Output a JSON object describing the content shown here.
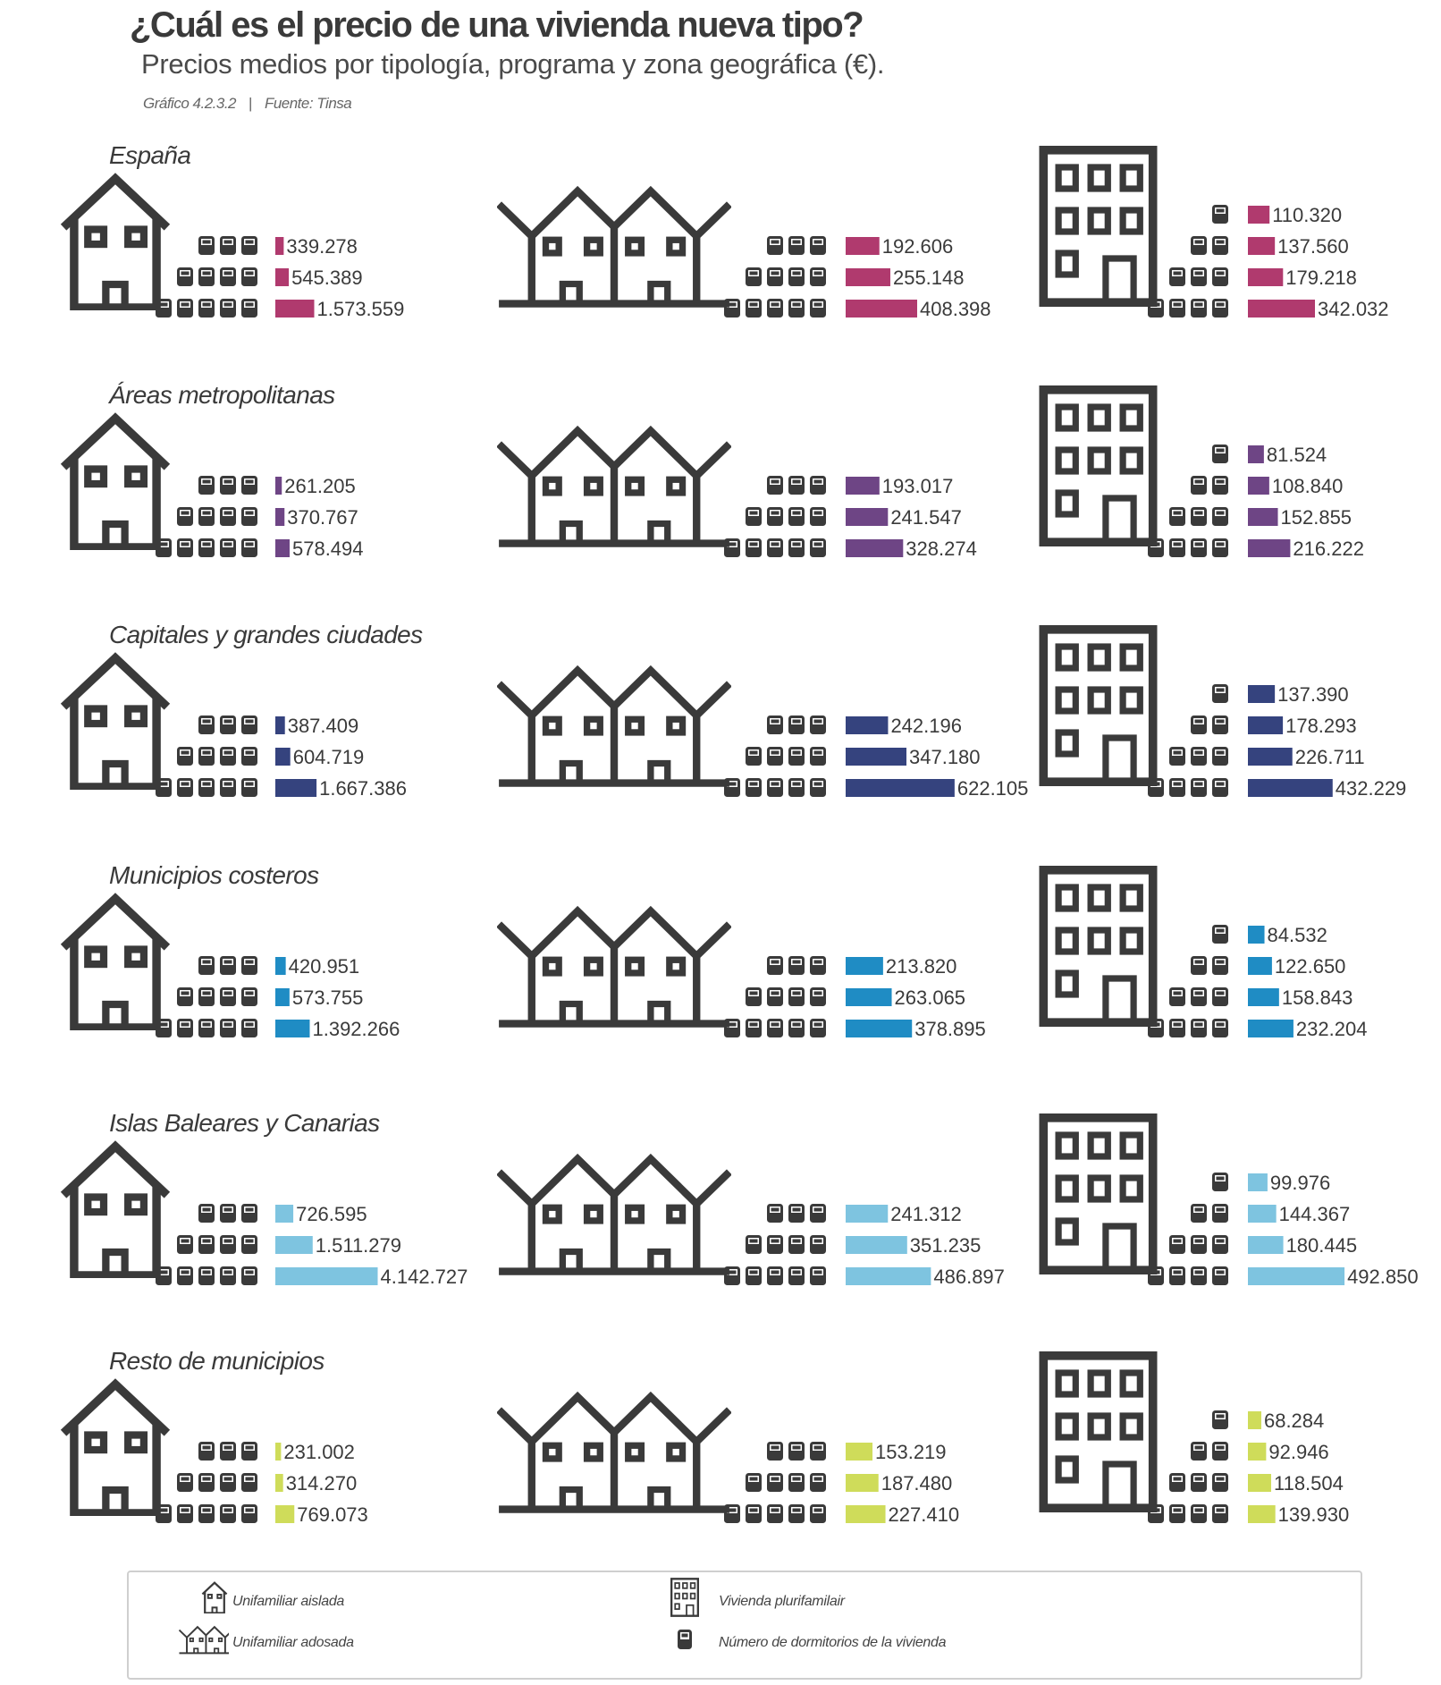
{
  "header": {
    "title": "¿Cuál es el precio de una vivienda nueva tipo?",
    "subtitle": "Precios medios por tipología, programa y zona geográfica (€).",
    "figure_ref": "Gráfico 4.2.3.2",
    "source": "Fuente: Tinsa"
  },
  "legend": {
    "aislada": "Unifamiliar aislada",
    "adosada": "Unifamiliar adosada",
    "plurifamiliar": "Vivienda plurifamilair",
    "dormitorios": "Número de dormitorios de la vivienda"
  },
  "chart_data": {
    "type": "bar",
    "series_groups": [
      "Unifamiliar aislada",
      "Unifamiliar adosada",
      "Vivienda plurifamilair"
    ],
    "bedrooms": {
      "aislada": [
        3,
        4,
        5
      ],
      "adosada": [
        3,
        4,
        5
      ],
      "plurifamiliar": [
        1,
        2,
        3,
        4
      ]
    },
    "regions": [
      {
        "name": "España",
        "color": "#b03a6e",
        "aislada": {
          "values": [
            339278,
            545389,
            1573559
          ],
          "labels": [
            "339.278",
            "545.389",
            "1.573.559"
          ]
        },
        "adosada": {
          "values": [
            192606,
            255148,
            408398
          ],
          "labels": [
            "192.606",
            "255.148",
            "408.398"
          ]
        },
        "plurifamiliar": {
          "values": [
            110320,
            137560,
            179218,
            342032
          ],
          "labels": [
            "110.320",
            "137.560",
            "179.218",
            "342.032"
          ]
        }
      },
      {
        "name": "Áreas metropolitanas",
        "color": "#6e4585",
        "aislada": {
          "values": [
            261205,
            370767,
            578494
          ],
          "labels": [
            "261.205",
            "370.767",
            "578.494"
          ]
        },
        "adosada": {
          "values": [
            193017,
            241547,
            328274
          ],
          "labels": [
            "193.017",
            "241.547",
            "328.274"
          ]
        },
        "plurifamiliar": {
          "values": [
            81524,
            108840,
            152855,
            216222
          ],
          "labels": [
            "81.524",
            "108.840",
            "152.855",
            "216.222"
          ]
        }
      },
      {
        "name": "Capitales y grandes ciudades",
        "color": "#35437e",
        "aislada": {
          "values": [
            387409,
            604719,
            1667386
          ],
          "labels": [
            "387.409",
            "604.719",
            "1.667.386"
          ]
        },
        "adosada": {
          "values": [
            242196,
            347180,
            622105
          ],
          "labels": [
            "242.196",
            "347.180",
            "622.105"
          ]
        },
        "plurifamiliar": {
          "values": [
            137390,
            178293,
            226711,
            432229
          ],
          "labels": [
            "137.390",
            "178.293",
            "226.711",
            "432.229"
          ]
        }
      },
      {
        "name": "Municipios costeros",
        "color": "#1f8cc4",
        "aislada": {
          "values": [
            420951,
            573755,
            1392266
          ],
          "labels": [
            "420.951",
            "573.755",
            "1.392.266"
          ]
        },
        "adosada": {
          "values": [
            213820,
            263065,
            378895
          ],
          "labels": [
            "213.820",
            "263.065",
            "378.895"
          ]
        },
        "plurifamiliar": {
          "values": [
            84532,
            122650,
            158843,
            232204
          ],
          "labels": [
            "84.532",
            "122.650",
            "158.843",
            "232.204"
          ]
        }
      },
      {
        "name": "Islas Baleares y Canarias",
        "color": "#7ec4e0",
        "aislada": {
          "values": [
            726595,
            1511279,
            4142727
          ],
          "labels": [
            "726.595",
            "1.511.279",
            "4.142.727"
          ]
        },
        "adosada": {
          "values": [
            241312,
            351235,
            486897
          ],
          "labels": [
            "241.312",
            "351.235",
            "486.897"
          ]
        },
        "plurifamiliar": {
          "values": [
            99976,
            144367,
            180445,
            492850
          ],
          "labels": [
            "99.976",
            "144.367",
            "180.445",
            "492.850"
          ]
        }
      },
      {
        "name": "Resto de municipios",
        "color": "#cfdc5a",
        "aislada": {
          "values": [
            231002,
            314270,
            769073
          ],
          "labels": [
            "231.002",
            "314.270",
            "769.073"
          ]
        },
        "adosada": {
          "values": [
            153219,
            187480,
            227410
          ],
          "labels": [
            "153.219",
            "187.480",
            "227.410"
          ]
        },
        "plurifamiliar": {
          "values": [
            68284,
            92946,
            118504,
            139930
          ],
          "labels": [
            "68.284",
            "92.946",
            "118.504",
            "139.930"
          ]
        }
      }
    ]
  }
}
